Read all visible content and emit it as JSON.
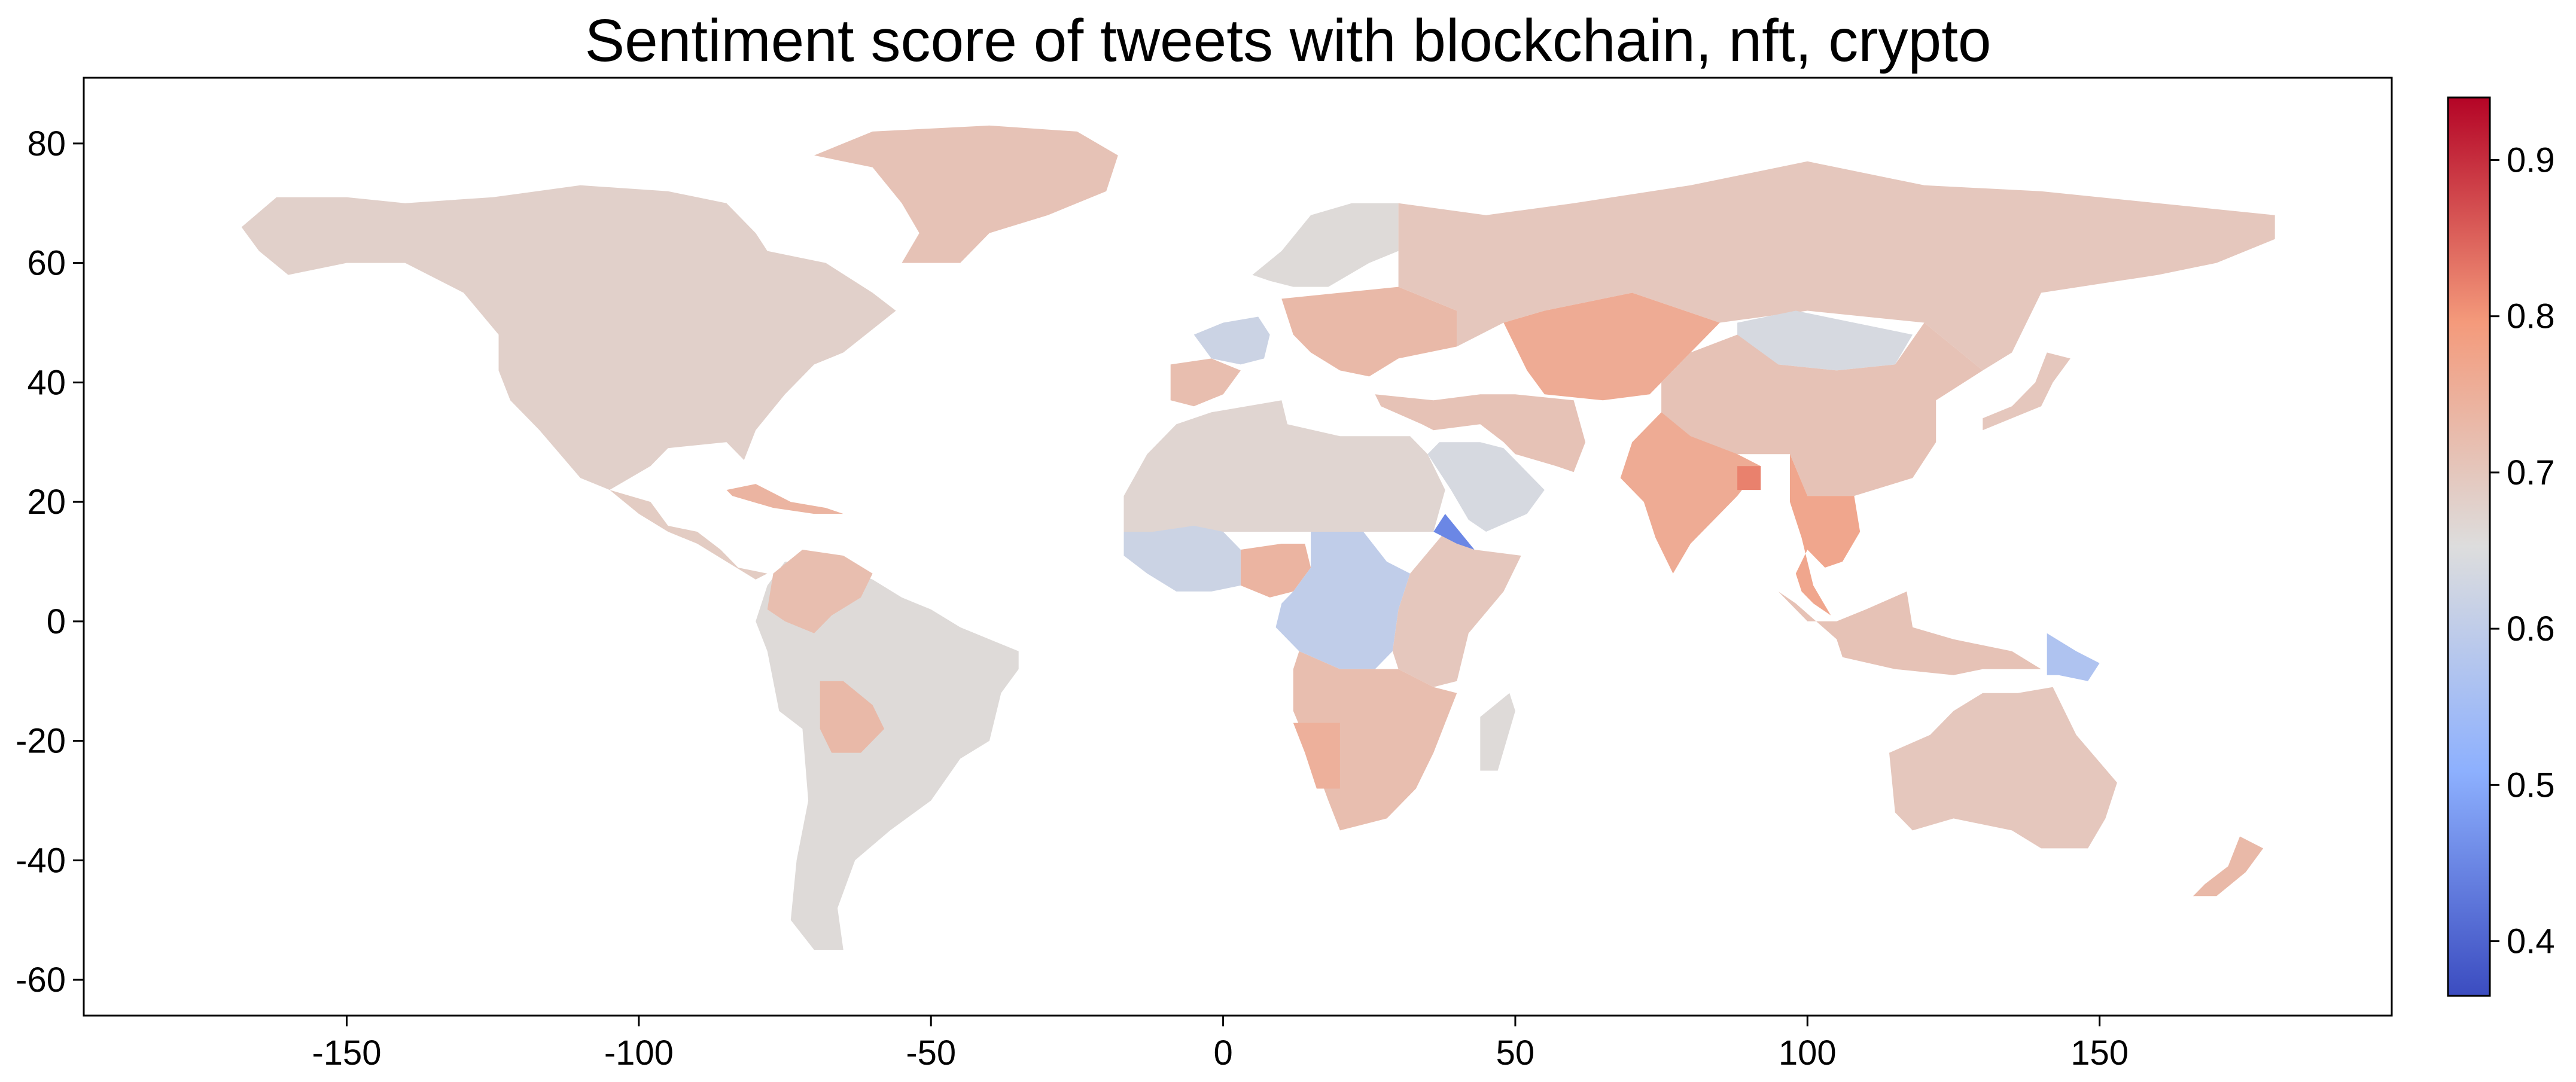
{
  "chart_data": {
    "type": "choropleth-map",
    "title": "Sentiment score of tweets with blockchain, nft, crypto",
    "xlabel": "",
    "ylabel": "",
    "xlim": [
      -195,
      200
    ],
    "ylim": [
      -66,
      91
    ],
    "x_ticks": [
      -150,
      -100,
      -50,
      0,
      50,
      100,
      150
    ],
    "y_ticks": [
      -60,
      -40,
      -20,
      0,
      20,
      40,
      60,
      80
    ],
    "colorbar": {
      "colormap": "coolwarm",
      "range": [
        0.365,
        0.94
      ],
      "ticks": [
        0.4,
        0.5,
        0.6,
        0.7,
        0.8,
        0.9
      ]
    },
    "regions": [
      {
        "name": "North America",
        "value": 0.68
      },
      {
        "name": "Greenland",
        "value": 0.71
      },
      {
        "name": "Central America",
        "value": 0.69
      },
      {
        "name": "Caribbean",
        "value": 0.74
      },
      {
        "name": "South America",
        "value": 0.66
      },
      {
        "name": "Colombia/Venezuela",
        "value": 0.72
      },
      {
        "name": "Bolivia",
        "value": 0.73
      },
      {
        "name": "Western Europe",
        "value": 0.62
      },
      {
        "name": "Northern Europe",
        "value": 0.66
      },
      {
        "name": "Eastern Europe",
        "value": 0.73
      },
      {
        "name": "Spain",
        "value": 0.72
      },
      {
        "name": "Russia",
        "value": 0.7
      },
      {
        "name": "Kazakhstan/Central Asia",
        "value": 0.76
      },
      {
        "name": "Mongolia",
        "value": 0.64
      },
      {
        "name": "China",
        "value": 0.71
      },
      {
        "name": "Middle East",
        "value": 0.71
      },
      {
        "name": "Saudi Arabia",
        "value": 0.64
      },
      {
        "name": "India",
        "value": 0.76
      },
      {
        "name": "Bangladesh",
        "value": 0.82
      },
      {
        "name": "Southeast Asia",
        "value": 0.77
      },
      {
        "name": "Japan",
        "value": 0.7
      },
      {
        "name": "Indonesia",
        "value": 0.71
      },
      {
        "name": "Papua New Guinea",
        "value": 0.57
      },
      {
        "name": "Australia",
        "value": 0.7
      },
      {
        "name": "New Zealand",
        "value": 0.73
      },
      {
        "name": "North Africa",
        "value": 0.67
      },
      {
        "name": "West Africa",
        "value": 0.62
      },
      {
        "name": "Nigeria",
        "value": 0.74
      },
      {
        "name": "Central Africa",
        "value": 0.6
      },
      {
        "name": "East Africa",
        "value": 0.7
      },
      {
        "name": "Eritrea",
        "value": 0.45
      },
      {
        "name": "Southern Africa",
        "value": 0.72
      },
      {
        "name": "Namibia",
        "value": 0.75
      },
      {
        "name": "Madagascar",
        "value": 0.66
      }
    ]
  }
}
